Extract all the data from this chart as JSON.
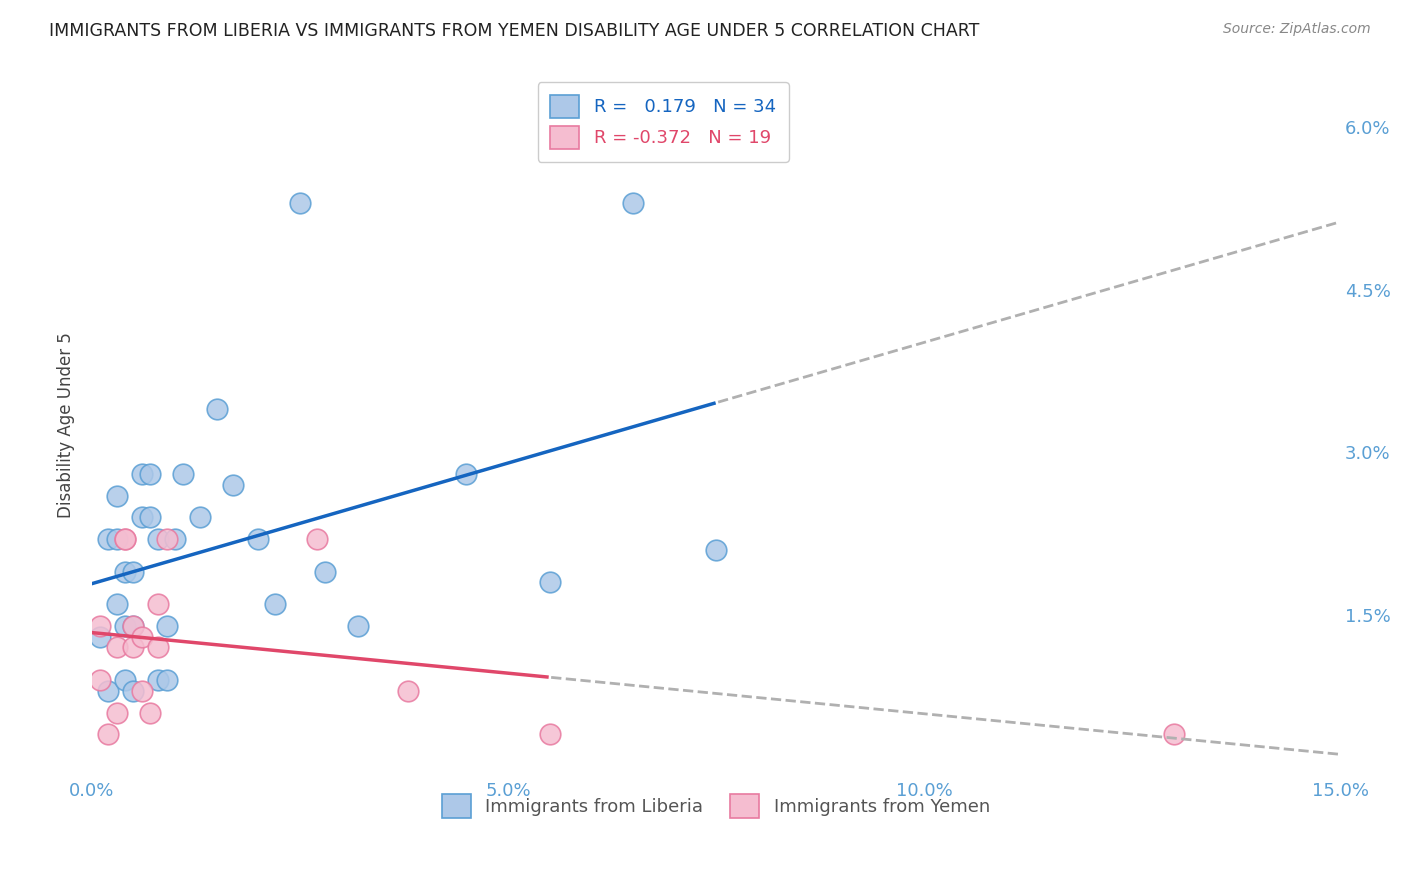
{
  "title": "IMMIGRANTS FROM LIBERIA VS IMMIGRANTS FROM YEMEN DISABILITY AGE UNDER 5 CORRELATION CHART",
  "source": "Source: ZipAtlas.com",
  "ylabel": "Disability Age Under 5",
  "xlim": [
    0.0,
    0.15
  ],
  "ylim": [
    0.0,
    0.065
  ],
  "xticks": [
    0.0,
    0.05,
    0.1,
    0.15
  ],
  "xticklabels": [
    "0.0%",
    "5.0%",
    "10.0%",
    "15.0%"
  ],
  "yticks_right": [
    0.0,
    0.015,
    0.03,
    0.045,
    0.06
  ],
  "yticklabels_right": [
    "",
    "1.5%",
    "3.0%",
    "4.5%",
    "6.0%"
  ],
  "liberia_color": "#adc8e8",
  "liberia_edge": "#5b9fd4",
  "yemen_color": "#f5bdd0",
  "yemen_edge": "#e87aa0",
  "liberia_line_color": "#1565c0",
  "yemen_line_color": "#e0476a",
  "trend_ext_color": "#b0b0b0",
  "R_liberia": 0.179,
  "N_liberia": 34,
  "R_yemen": -0.372,
  "N_yemen": 19,
  "liberia_x": [
    0.001,
    0.002,
    0.002,
    0.003,
    0.003,
    0.003,
    0.004,
    0.004,
    0.004,
    0.005,
    0.005,
    0.005,
    0.006,
    0.006,
    0.007,
    0.007,
    0.008,
    0.008,
    0.009,
    0.009,
    0.01,
    0.011,
    0.013,
    0.015,
    0.017,
    0.02,
    0.022,
    0.025,
    0.028,
    0.032,
    0.045,
    0.055,
    0.065,
    0.075
  ],
  "liberia_y": [
    0.013,
    0.008,
    0.022,
    0.016,
    0.022,
    0.026,
    0.009,
    0.014,
    0.019,
    0.008,
    0.014,
    0.019,
    0.024,
    0.028,
    0.024,
    0.028,
    0.009,
    0.022,
    0.009,
    0.014,
    0.022,
    0.028,
    0.024,
    0.034,
    0.027,
    0.022,
    0.016,
    0.053,
    0.019,
    0.014,
    0.028,
    0.018,
    0.053,
    0.021
  ],
  "yemen_x": [
    0.001,
    0.001,
    0.002,
    0.003,
    0.003,
    0.004,
    0.004,
    0.005,
    0.005,
    0.006,
    0.006,
    0.007,
    0.008,
    0.008,
    0.009,
    0.027,
    0.038,
    0.055,
    0.13
  ],
  "yemen_y": [
    0.009,
    0.014,
    0.004,
    0.006,
    0.012,
    0.022,
    0.022,
    0.012,
    0.014,
    0.013,
    0.008,
    0.006,
    0.012,
    0.016,
    0.022,
    0.022,
    0.008,
    0.004,
    0.004
  ],
  "trend_solid_end_liberia": 0.075,
  "trend_solid_end_yemen": 0.055
}
